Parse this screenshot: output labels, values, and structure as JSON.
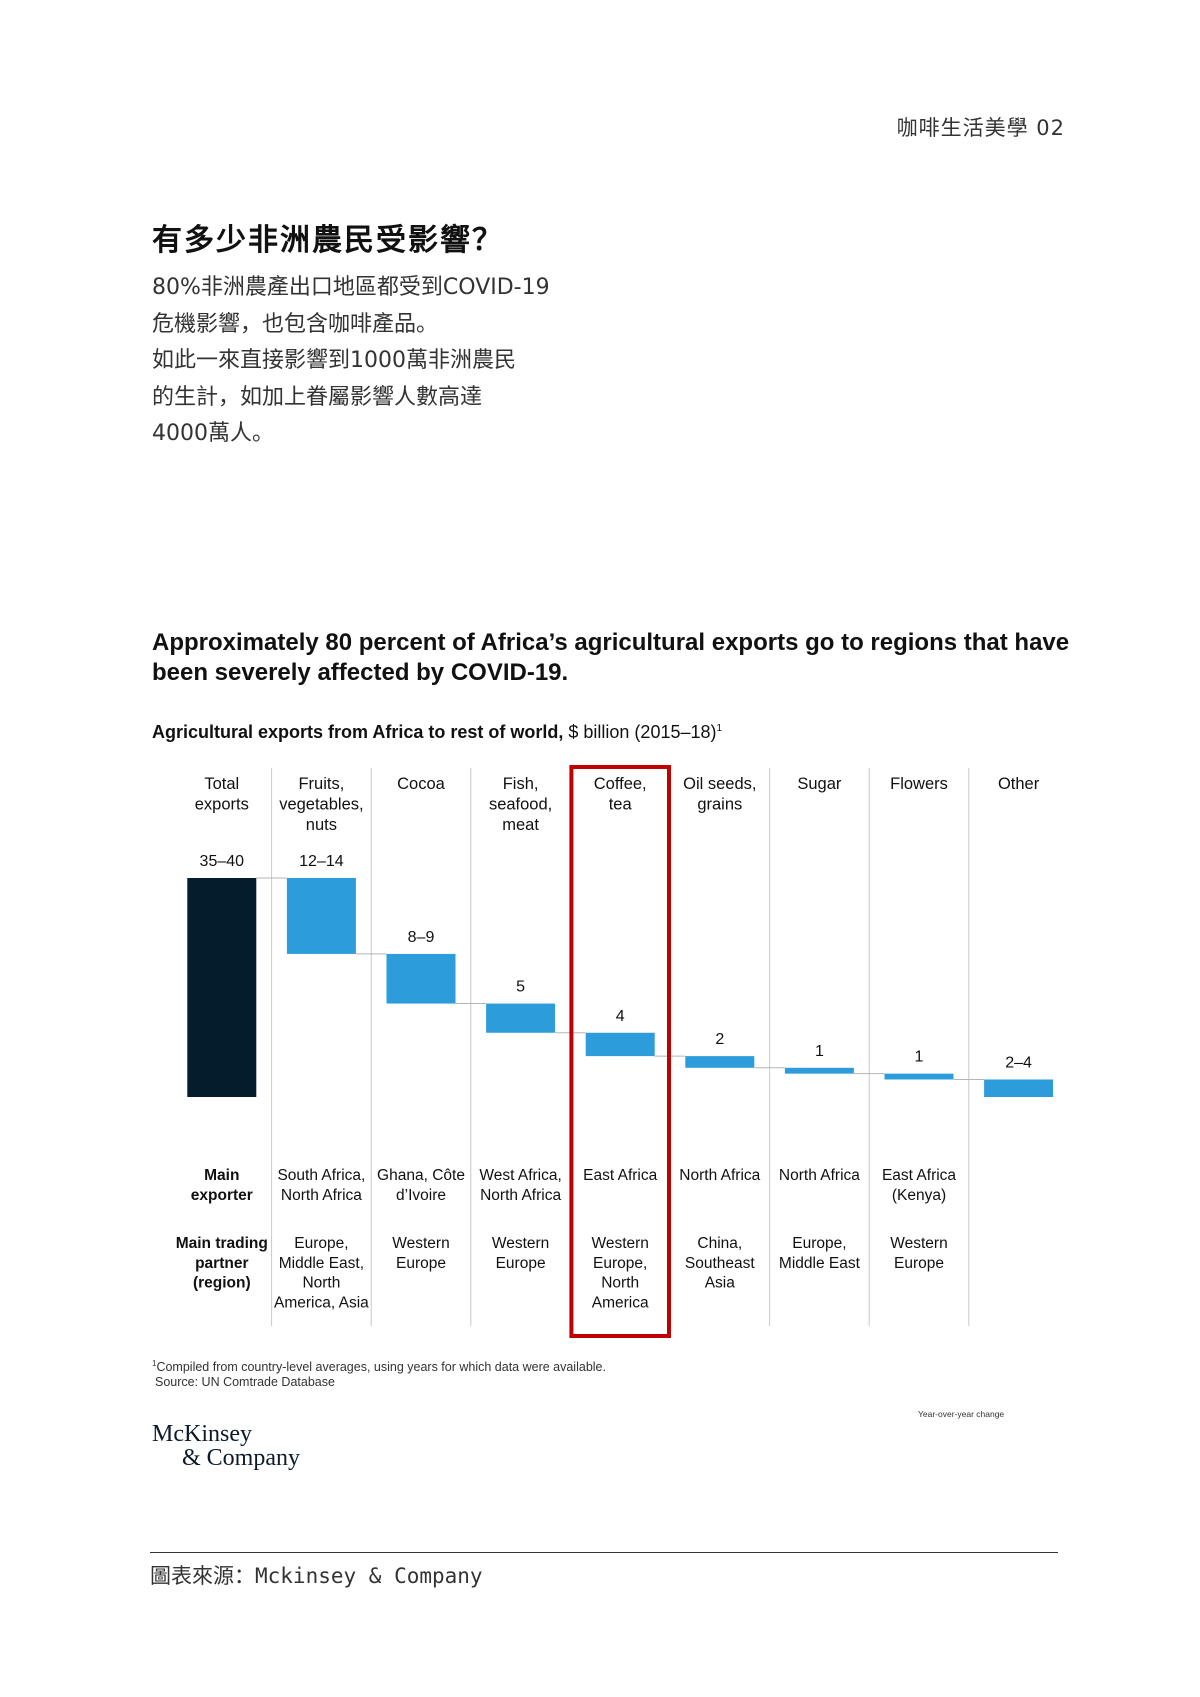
{
  "page_header": "咖啡生活美學 02",
  "heading": "有多少非洲農民受影響？",
  "intro_lines": [
    "80%非洲農產出口地區都受到COVID-19",
    "危機影響，也包含咖啡產品。",
    "如此一來直接影響到1000萬非洲農民",
    "的生計，如加上眷屬影響人數高達",
    "4000萬人。"
  ],
  "chart_data": {
    "type": "bar",
    "subtype": "waterfall",
    "title": "Approximately 80 percent of Africa’s agricultural exports go to regions that have been severely affected by COVID-19.",
    "subtitle_bold": "Agricultural exports from Africa to rest of world,",
    "subtitle_rest": " $ billion (2015–18)",
    "subtitle_sup": "1",
    "unit": "$ billion",
    "categories": [
      {
        "label_lines": [
          "Total",
          "exports"
        ],
        "value_label": "35–40",
        "value": 37.5,
        "kind": "total",
        "exporter_lines": [],
        "partner_lines": []
      },
      {
        "label_lines": [
          "Fruits,",
          "vegetables,",
          "nuts"
        ],
        "value_label": "12–14",
        "value": 13,
        "kind": "step",
        "exporter_lines": [
          "South Africa,",
          "North Africa"
        ],
        "partner_lines": [
          "Europe,",
          "Middle East,",
          "North",
          "America, Asia"
        ]
      },
      {
        "label_lines": [
          "Cocoa"
        ],
        "value_label": "8–9",
        "value": 8.5,
        "kind": "step",
        "exporter_lines": [
          "Ghana, Côte",
          "d’Ivoire"
        ],
        "partner_lines": [
          "Western",
          "Europe"
        ]
      },
      {
        "label_lines": [
          "Fish,",
          "seafood,",
          "meat"
        ],
        "value_label": "5",
        "value": 5,
        "kind": "step",
        "exporter_lines": [
          "West Africa,",
          "North Africa"
        ],
        "partner_lines": [
          "Western",
          "Europe"
        ]
      },
      {
        "label_lines": [
          "Coffee,",
          "tea"
        ],
        "value_label": "4",
        "value": 4,
        "kind": "step",
        "highlight": true,
        "exporter_lines": [
          "East Africa"
        ],
        "partner_lines": [
          "Western",
          "Europe,",
          "North",
          "America"
        ]
      },
      {
        "label_lines": [
          "Oil seeds,",
          "grains"
        ],
        "value_label": "2",
        "value": 2,
        "kind": "step",
        "exporter_lines": [
          "North Africa"
        ],
        "partner_lines": [
          "China,",
          "Southeast",
          "Asia"
        ]
      },
      {
        "label_lines": [
          "Sugar"
        ],
        "value_label": "1",
        "value": 1,
        "kind": "step",
        "exporter_lines": [
          "North Africa"
        ],
        "partner_lines": [
          "Europe,",
          "Middle East"
        ]
      },
      {
        "label_lines": [
          "Flowers"
        ],
        "value_label": "1",
        "value": 1,
        "kind": "step",
        "exporter_lines": [
          "East Africa",
          "(Kenya)"
        ],
        "partner_lines": [
          "Western",
          "Europe"
        ]
      },
      {
        "label_lines": [
          "Other"
        ],
        "value_label": "2–4",
        "value": 3,
        "kind": "step",
        "exporter_lines": [],
        "partner_lines": []
      }
    ],
    "row_labels": {
      "exporter": [
        "Main",
        "exporter"
      ],
      "partner": [
        "Main trading",
        "partner",
        "(region)"
      ]
    },
    "colors": {
      "total": "#051c2c",
      "step": "#2d9cdb",
      "highlight": "#c00000",
      "divider": "#c8c8c8"
    }
  },
  "footnote_sup": "1",
  "footnote_line1": "Compiled from country-level averages, using years for which data were available.",
  "footnote_line2": "Source: UN Comtrade Database",
  "yoy_note": "Year-over-year change",
  "logo_line1": "McKinsey",
  "logo_line2": "& Company",
  "credit": "圖表來源：Mckinsey & Company"
}
